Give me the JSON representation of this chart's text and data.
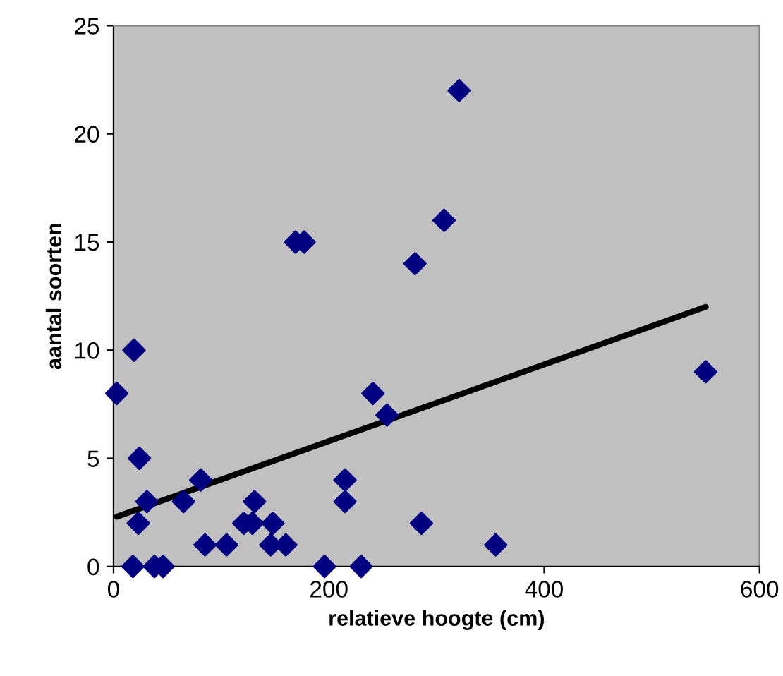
{
  "chart_data": {
    "type": "scatter",
    "xlabel": "relatieve hoogte (cm)",
    "ylabel": "aantal soorten",
    "xlim": [
      0,
      600
    ],
    "ylim": [
      0,
      25
    ],
    "xticks": [
      0,
      200,
      400,
      600
    ],
    "yticks": [
      0,
      5,
      10,
      15,
      20,
      25
    ],
    "grid": false,
    "legend": false,
    "marker": "diamond",
    "series": [
      {
        "color": "#000080",
        "x": [
          3,
          19,
          24,
          23,
          18,
          38,
          46,
          31,
          65,
          81,
          85,
          105,
          121,
          129,
          131,
          146,
          148,
          160,
          169,
          177,
          321,
          307,
          280,
          550,
          241,
          254,
          215,
          215,
          286,
          355,
          196,
          230
        ],
        "values": [
          8,
          10,
          5,
          2,
          0,
          0,
          0,
          3,
          3,
          4,
          1,
          1,
          2,
          2,
          3,
          1,
          2,
          1,
          15,
          15,
          22,
          16,
          14,
          9,
          8,
          7,
          4,
          3,
          2,
          1,
          0,
          0
        ]
      },
      {
        "type": "line",
        "color": "#000000",
        "line_style": "solid",
        "marker": "none",
        "x": [
          3,
          550
        ],
        "values": [
          2.3,
          12.0
        ]
      }
    ]
  }
}
